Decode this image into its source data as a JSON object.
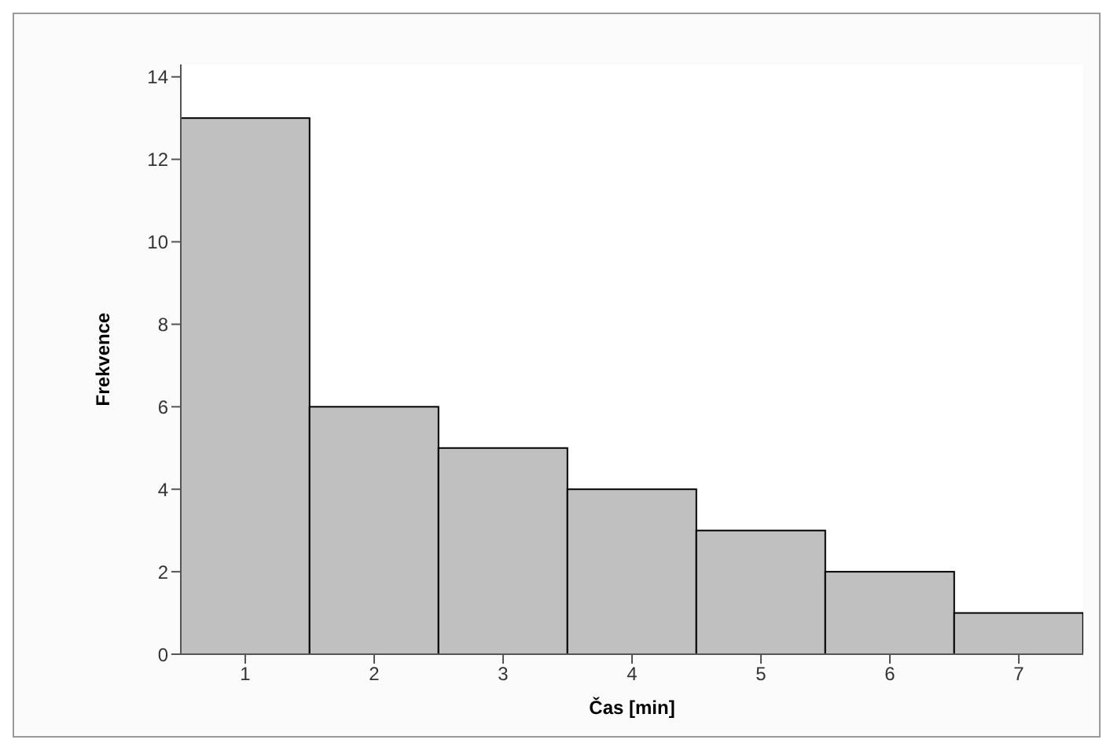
{
  "chart_data": {
    "type": "histogram",
    "xlabel": "Čas [min]",
    "ylabel": "Frekvence",
    "bins": [
      0.5,
      1.5,
      2.5,
      3.5,
      4.5,
      5.5,
      6.5,
      7.5
    ],
    "values": [
      13,
      6,
      5,
      4,
      3,
      2,
      1
    ],
    "color": "#c0c0c0",
    "xlim": [
      0.5,
      7.5
    ],
    "xticks": [
      1,
      2,
      3,
      4,
      5,
      6,
      7
    ],
    "ylim": [
      0,
      14.3
    ],
    "yticks": [
      0,
      2,
      4,
      6,
      8,
      10,
      12,
      14
    ],
    "grid": false,
    "legend": false
  }
}
